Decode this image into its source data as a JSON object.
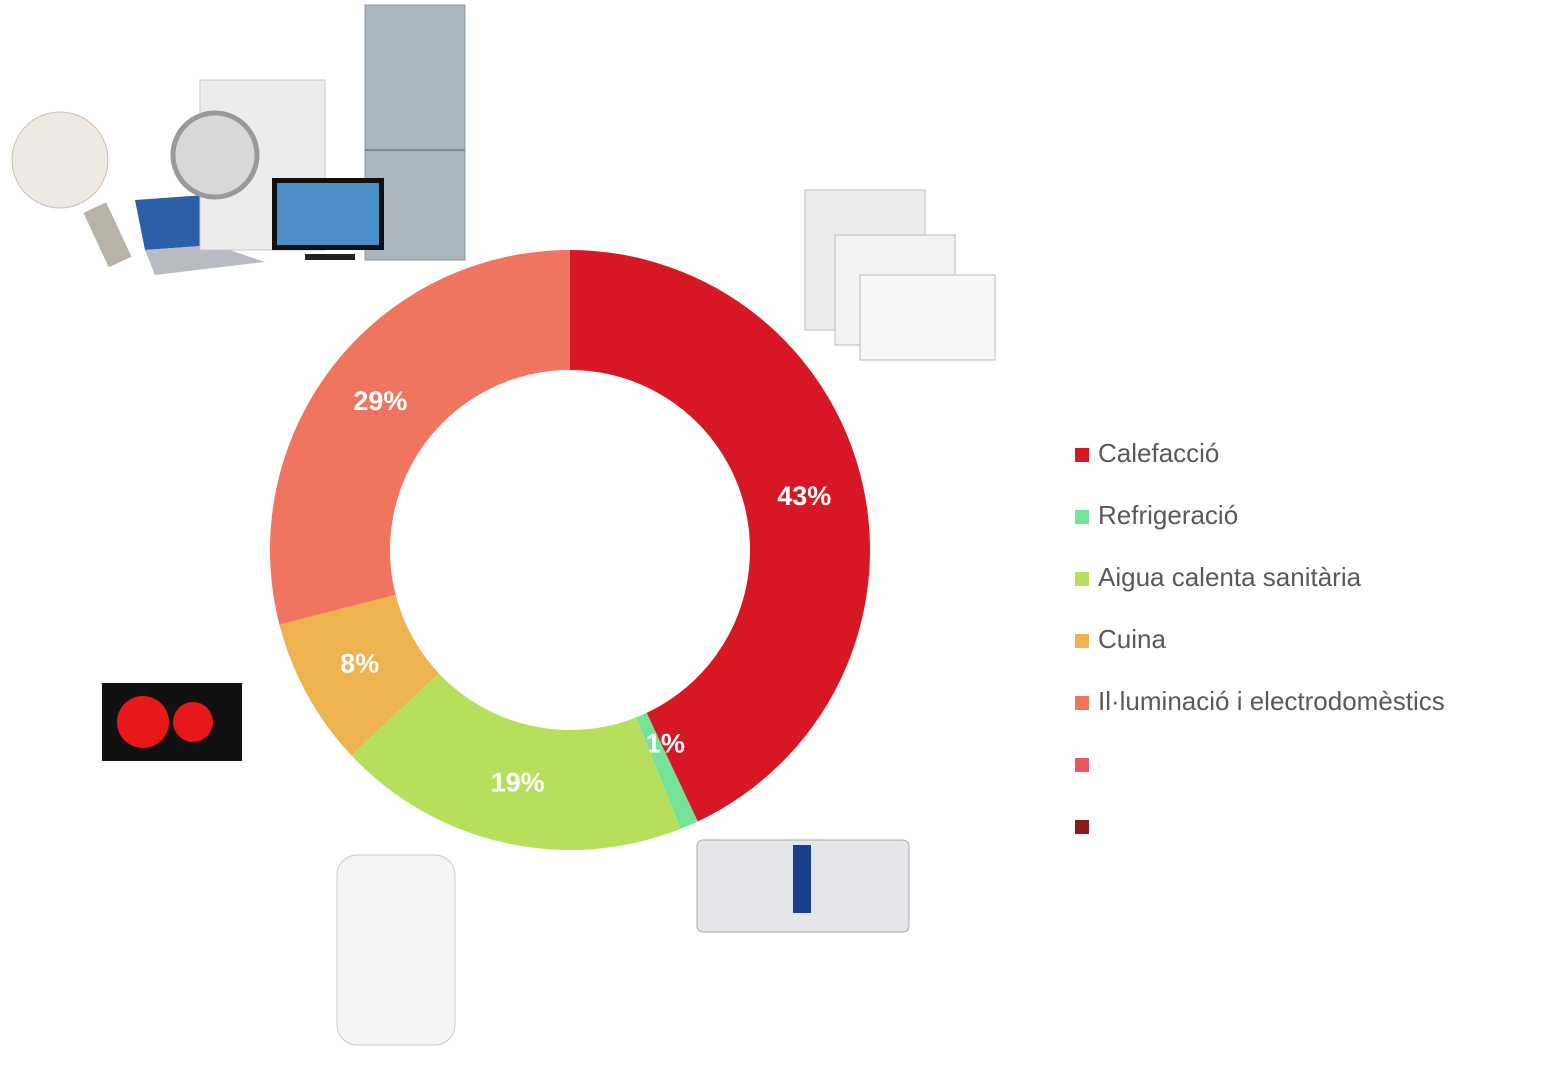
{
  "chart_data": {
    "type": "donut",
    "categories": [
      "Calefacció",
      "Refrigeració",
      "Aigua calenta sanitària",
      "Cuina",
      "Il·luminació i electrodomèstics",
      null,
      null
    ],
    "values": [
      43,
      1,
      19,
      8,
      29,
      null,
      null
    ],
    "value_labels": [
      "43%",
      "1%",
      "19%",
      "8%",
      "29%",
      null,
      null
    ],
    "colors": [
      "#d81725",
      "#74e39a",
      "#b6e05c",
      "#eeb24f",
      "#ef7561",
      "#e8575f",
      "#8b1a1f"
    ],
    "legend": "right"
  }
}
